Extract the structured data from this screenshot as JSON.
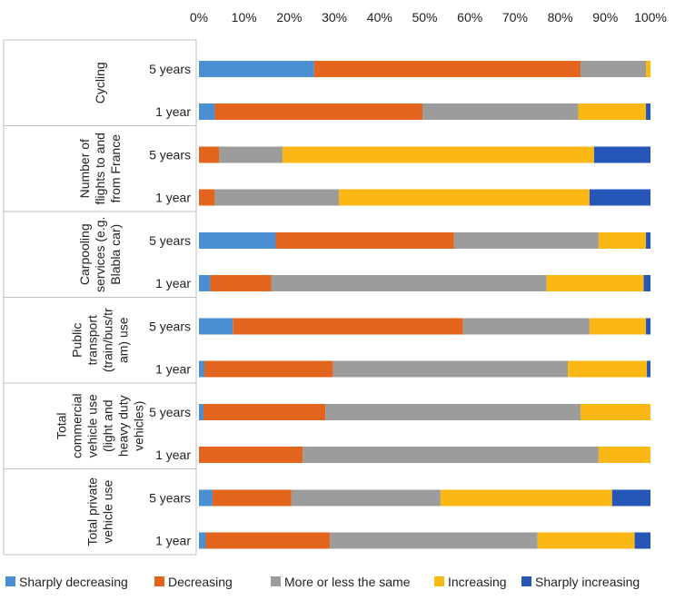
{
  "chart_data": {
    "type": "bar",
    "orientation": "horizontal",
    "stacked": "100%",
    "x_ticks": [
      "0%",
      "10%",
      "20%",
      "30%",
      "40%",
      "50%",
      "60%",
      "70%",
      "80%",
      "90%",
      "100%"
    ],
    "xlim": [
      0,
      100
    ],
    "grid": false,
    "legend_position": "bottom",
    "series": [
      {
        "name": "Sharply decreasing",
        "color": "#4a8fd2"
      },
      {
        "name": "Decreasing",
        "color": "#e3641c"
      },
      {
        "name": "More or less the same",
        "color": "#9c9c9c"
      },
      {
        "name": "Increasing",
        "color": "#fbb713"
      },
      {
        "name": "Sharply increasing",
        "color": "#2556b8"
      }
    ],
    "groups": [
      {
        "label_lines": [
          "Cycling"
        ],
        "bars": [
          {
            "label": "5 years",
            "values": [
              25.5,
              59,
              14.5,
              1,
              0
            ]
          },
          {
            "label": "1 year",
            "values": [
              3.5,
              46,
              34.5,
              15,
              1
            ]
          }
        ]
      },
      {
        "label_lines": [
          "Number of",
          "flights to and",
          "from France"
        ],
        "bars": [
          {
            "label": "5 years",
            "values": [
              0,
              4.5,
              14,
              69,
              12.5
            ]
          },
          {
            "label": "1 year",
            "values": [
              0,
              3.5,
              27.5,
              55.5,
              13.5
            ]
          }
        ]
      },
      {
        "label_lines": [
          "Carpooling",
          "services (e.g.",
          "Blabla car)"
        ],
        "bars": [
          {
            "label": "5 years",
            "values": [
              17,
              39.5,
              32,
              10.5,
              1
            ]
          },
          {
            "label": "1 year",
            "values": [
              2.5,
              13.5,
              61,
              21.5,
              1.5
            ]
          }
        ]
      },
      {
        "label_lines": [
          "Public",
          "transport",
          "(train/bus/tr",
          "am) use"
        ],
        "bars": [
          {
            "label": "5 years",
            "values": [
              7.5,
              51,
              28,
              12.5,
              1
            ]
          },
          {
            "label": "1 year",
            "values": [
              1.2,
              28.5,
              52,
              17.5,
              0.8
            ]
          }
        ]
      },
      {
        "label_lines": [
          "Total",
          "commercial",
          "vehicle use",
          "(light and",
          "heavy duty",
          "vehicles)"
        ],
        "bars": [
          {
            "label": "5 years",
            "values": [
              1,
              27,
              56.5,
              15.5,
              0
            ]
          },
          {
            "label": "1 year",
            "values": [
              0,
              23,
              65.5,
              11.5,
              0
            ]
          }
        ]
      },
      {
        "label_lines": [
          "Total private",
          "vehicle use"
        ],
        "bars": [
          {
            "label": "5 years",
            "values": [
              3,
              17.5,
              33,
              38,
              8.5
            ]
          },
          {
            "label": "1 year",
            "values": [
              1.5,
              27.5,
              46,
              21.5,
              3.5
            ]
          }
        ]
      }
    ]
  }
}
